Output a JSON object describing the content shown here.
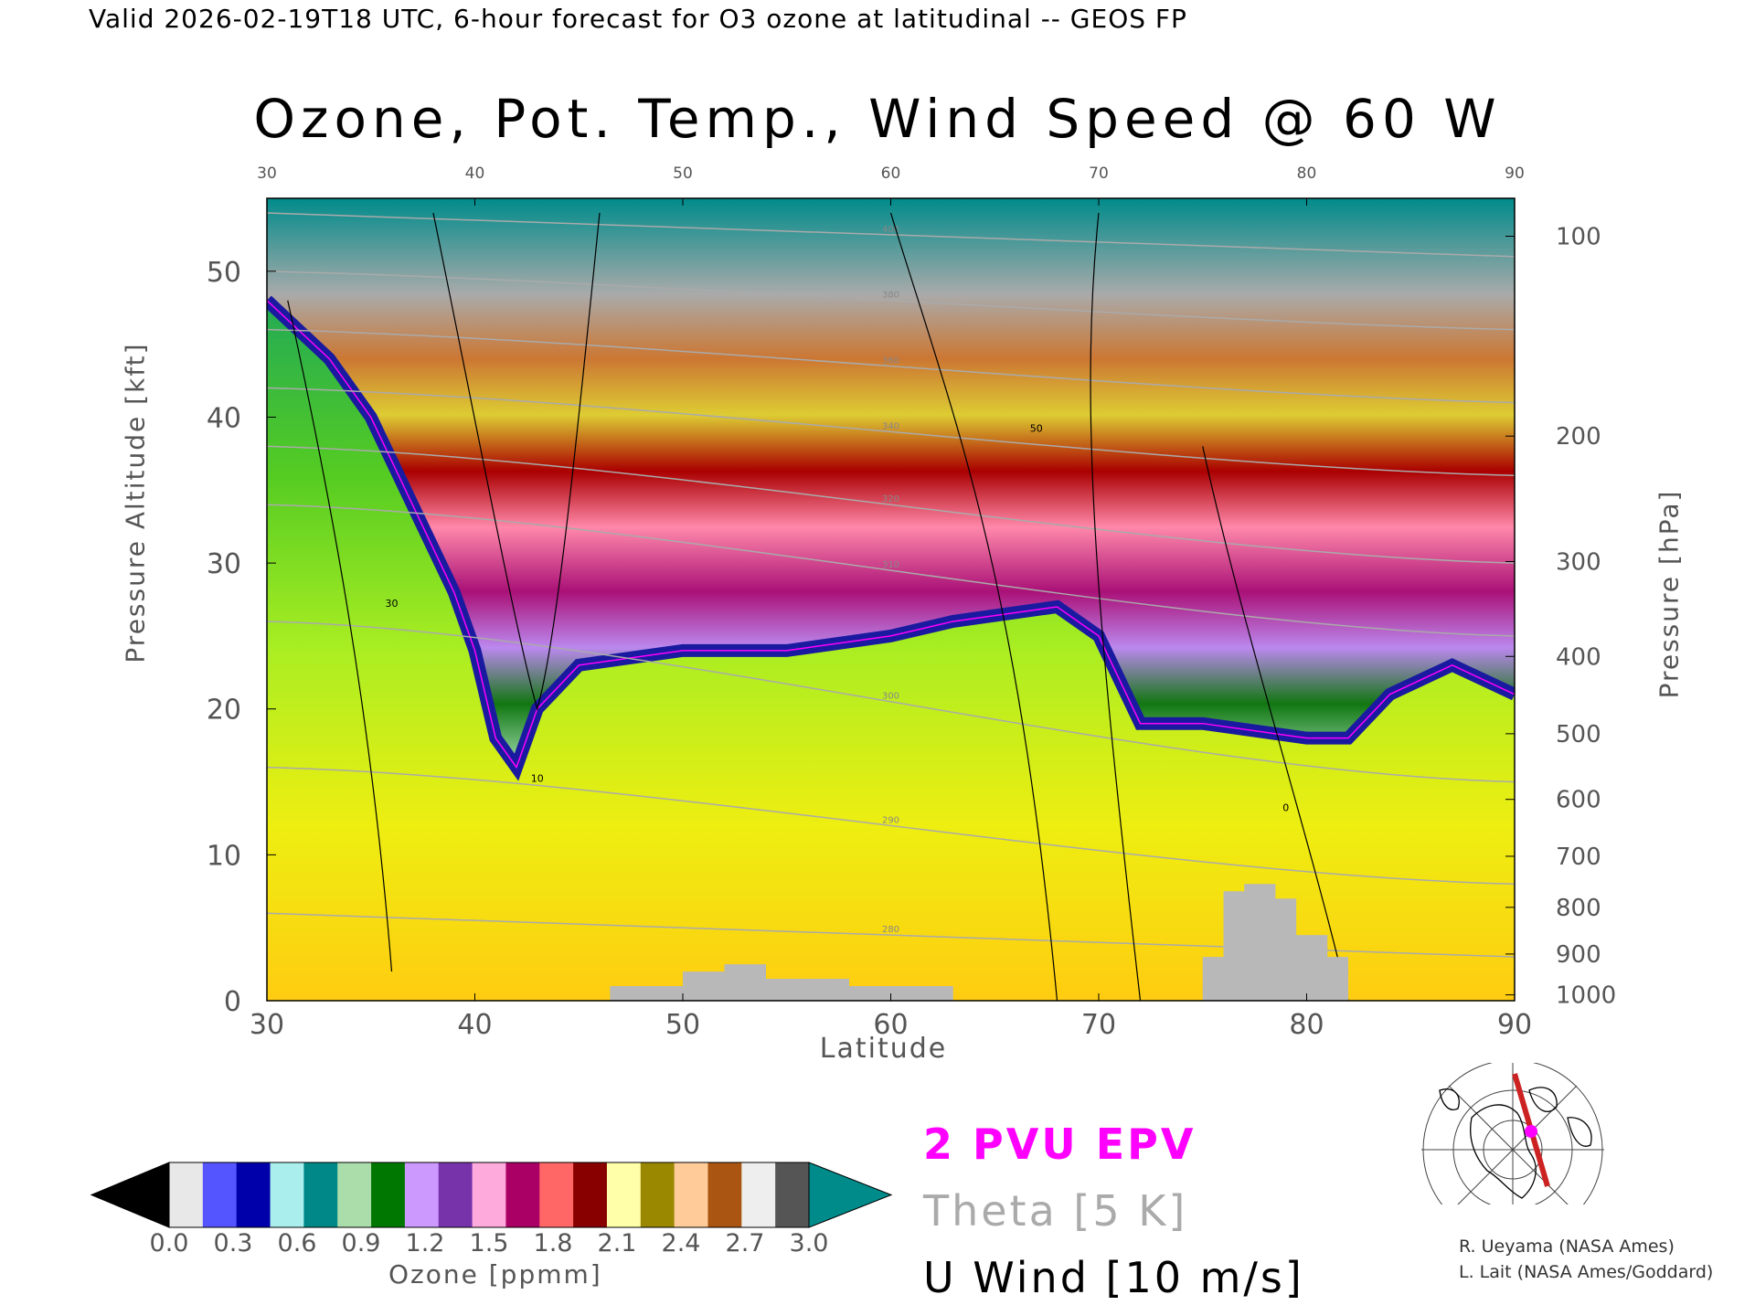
{
  "header": {
    "valid_line": "Valid 2026-02-19T18 UTC, 6-hour forecast for O3 ozone at latitudinal -- GEOS FP"
  },
  "chart_data": {
    "type": "contour-cross-section",
    "title": "Ozone, Pot. Temp., Wind Speed @ 60 W",
    "xlabel": "Latitude",
    "ylabel": "Pressure Altitude [kft]",
    "y2label": "Pressure [hPa]",
    "xlim": [
      30,
      90
    ],
    "ylim": [
      0,
      55
    ],
    "x_ticks": [
      30,
      40,
      50,
      60,
      70,
      80,
      90
    ],
    "x_tick_labels": [
      "30",
      "40",
      "50",
      "60",
      "70",
      "80",
      "90"
    ],
    "y_ticks": [
      0,
      10,
      20,
      30,
      40,
      50
    ],
    "y_tick_labels": [
      "0",
      "10",
      "20",
      "30",
      "40",
      "50"
    ],
    "pressure_ticks": [
      {
        "label": "100",
        "kft": 52.4
      },
      {
        "label": "200",
        "kft": 38.7
      },
      {
        "label": "300",
        "kft": 30.1
      },
      {
        "label": "400",
        "kft": 23.6
      },
      {
        "label": "500",
        "kft": 18.3
      },
      {
        "label": "600",
        "kft": 13.8
      },
      {
        "label": "700",
        "kft": 9.9
      },
      {
        "label": "800",
        "kft": 6.4
      },
      {
        "label": "900",
        "kft": 3.2
      },
      {
        "label": "1000",
        "kft": 0.4
      }
    ],
    "tropopause_kft": [
      [
        30,
        48
      ],
      [
        33,
        44
      ],
      [
        35,
        40
      ],
      [
        37,
        34
      ],
      [
        39,
        28
      ],
      [
        40,
        24
      ],
      [
        41,
        18
      ],
      [
        42,
        16
      ],
      [
        43,
        20
      ],
      [
        45,
        23
      ],
      [
        50,
        24
      ],
      [
        55,
        24
      ],
      [
        60,
        25
      ],
      [
        63,
        26
      ],
      [
        68,
        27
      ],
      [
        70,
        25
      ],
      [
        72,
        19
      ],
      [
        75,
        19
      ],
      [
        80,
        18
      ],
      [
        82,
        18
      ],
      [
        84,
        21
      ],
      [
        87,
        23
      ],
      [
        90,
        21
      ]
    ],
    "theta_contours": [
      {
        "label": "280",
        "kft_at_30": 6,
        "kft_at_90": 3
      },
      {
        "label": "290",
        "kft_at_30": 16,
        "kft_at_90": 8
      },
      {
        "label": "300",
        "kft_at_30": 26,
        "kft_at_90": 15
      },
      {
        "label": "310",
        "kft_at_30": 34,
        "kft_at_90": 25
      },
      {
        "label": "320",
        "kft_at_30": 38,
        "kft_at_90": 30
      },
      {
        "label": "340",
        "kft_at_30": 42,
        "kft_at_90": 36
      },
      {
        "label": "360",
        "kft_at_30": 46,
        "kft_at_90": 41
      },
      {
        "label": "380",
        "kft_at_30": 50,
        "kft_at_90": 46
      },
      {
        "label": "400",
        "kft_at_30": 54,
        "kft_at_90": 51
      }
    ],
    "wind_contour_labels": [
      "10",
      "30",
      "50",
      "0"
    ],
    "colorbar": {
      "label": "Ozone [ppmm]",
      "min": 0.0,
      "max": 3.0,
      "tick_labels": [
        "0.0",
        "0.3",
        "0.6",
        "0.9",
        "1.2",
        "1.5",
        "1.8",
        "2.1",
        "2.4",
        "2.7",
        "3.0"
      ],
      "under_color": "#000000",
      "over_color": "#008b8b",
      "colors": [
        "#e8e8e8",
        "#5555ff",
        "#0000aa",
        "#aaeeee",
        "#008888",
        "#aaddaa",
        "#007700",
        "#cc99ff",
        "#7733aa",
        "#ffaadd",
        "#aa0066",
        "#ff6666",
        "#880000",
        "#ffffaa",
        "#998800",
        "#ffcc99",
        "#aa5511",
        "#eeeeee",
        "#555555"
      ]
    }
  },
  "legend": {
    "epv": "2 PVU EPV",
    "theta": "Theta [5 K]",
    "wind": "U Wind [10 m/s]",
    "epv_color": "#ff00ff",
    "theta_color": "#aaaaaa",
    "wind_color": "#000000"
  },
  "credits": {
    "line1": "R. Ueyama (NASA Ames)",
    "line2": "L. Lait (NASA Ames/Goddard)"
  },
  "locator_map": {
    "icon": "globe-map-icon",
    "section_color": "#cc2222",
    "marker_color": "#ff00ff"
  }
}
